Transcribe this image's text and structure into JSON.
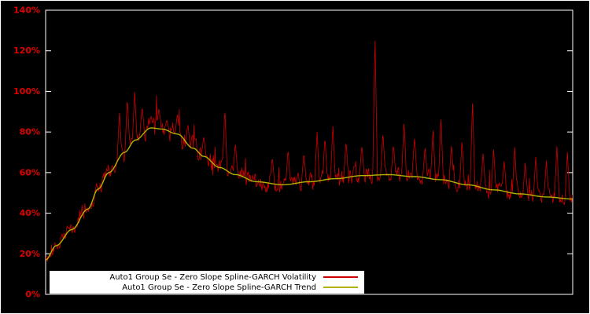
{
  "chart": {
    "background": "#000000",
    "frame_color": "#ffffff",
    "tick_label_color": "#dd0000",
    "legend_position": "bottom-left"
  },
  "chart_data": {
    "type": "line",
    "title": "",
    "xlabel": "",
    "ylabel": "",
    "ylim": [
      0,
      140
    ],
    "yticks": [
      0,
      20,
      40,
      60,
      80,
      100,
      120,
      140
    ],
    "ytick_labels": [
      "0%",
      "20%",
      "40%",
      "60%",
      "80%",
      "100%",
      "120%",
      "140%"
    ],
    "x_range": [
      0,
      1
    ],
    "grid": false,
    "series": [
      {
        "name": "Auto1 Group Se - Zero Slope Spline-GARCH Volatility",
        "color": "#cc0000",
        "style": "noisy"
      },
      {
        "name": "Auto1 Group Se - Zero Slope Spline-GARCH Trend",
        "color": "#b2b200",
        "style": "smooth"
      }
    ],
    "trend_points": {
      "x": [
        0,
        0.02,
        0.05,
        0.08,
        0.1,
        0.12,
        0.15,
        0.17,
        0.2,
        0.22,
        0.25,
        0.28,
        0.3,
        0.33,
        0.36,
        0.4,
        0.45,
        0.5,
        0.55,
        0.6,
        0.65,
        0.7,
        0.75,
        0.8,
        0.85,
        0.9,
        0.95,
        1.0
      ],
      "y": [
        17,
        24,
        32,
        42,
        52,
        60,
        70,
        76,
        82,
        81.5,
        79,
        72,
        68,
        62.5,
        59,
        55.5,
        54,
        55.5,
        57,
        58.5,
        59,
        58,
        56.5,
        54,
        51.5,
        49.5,
        48,
        47
      ]
    },
    "spikes": [
      {
        "x": 0.14,
        "peak": 90
      },
      {
        "x": 0.155,
        "peak": 97
      },
      {
        "x": 0.169,
        "peak": 100
      },
      {
        "x": 0.183,
        "peak": 93
      },
      {
        "x": 0.2,
        "peak": 88
      },
      {
        "x": 0.215,
        "peak": 92
      },
      {
        "x": 0.23,
        "peak": 86
      },
      {
        "x": 0.25,
        "peak": 89
      },
      {
        "x": 0.27,
        "peak": 84
      },
      {
        "x": 0.3,
        "peak": 78
      },
      {
        "x": 0.34,
        "peak": 92
      },
      {
        "x": 0.36,
        "peak": 75
      },
      {
        "x": 0.43,
        "peak": 68
      },
      {
        "x": 0.46,
        "peak": 72
      },
      {
        "x": 0.49,
        "peak": 70
      },
      {
        "x": 0.515,
        "peak": 80
      },
      {
        "x": 0.53,
        "peak": 78
      },
      {
        "x": 0.545,
        "peak": 83
      },
      {
        "x": 0.57,
        "peak": 76
      },
      {
        "x": 0.6,
        "peak": 74
      },
      {
        "x": 0.625,
        "peak": 127
      },
      {
        "x": 0.64,
        "peak": 80
      },
      {
        "x": 0.66,
        "peak": 74
      },
      {
        "x": 0.68,
        "peak": 86
      },
      {
        "x": 0.7,
        "peak": 78
      },
      {
        "x": 0.72,
        "peak": 73
      },
      {
        "x": 0.735,
        "peak": 82
      },
      {
        "x": 0.75,
        "peak": 88
      },
      {
        "x": 0.77,
        "peak": 74
      },
      {
        "x": 0.79,
        "peak": 76
      },
      {
        "x": 0.81,
        "peak": 96
      },
      {
        "x": 0.83,
        "peak": 70
      },
      {
        "x": 0.85,
        "peak": 72
      },
      {
        "x": 0.87,
        "peak": 66
      },
      {
        "x": 0.89,
        "peak": 73
      },
      {
        "x": 0.91,
        "peak": 65
      },
      {
        "x": 0.93,
        "peak": 68
      },
      {
        "x": 0.95,
        "peak": 66
      },
      {
        "x": 0.97,
        "peak": 73
      },
      {
        "x": 0.99,
        "peak": 70
      }
    ],
    "noise": {
      "seed": 42,
      "wiggle": 5.5,
      "spike_prob": 0.06,
      "spike_max": 14,
      "spike_halfwidth": 0.0045
    },
    "n_samples": 900
  }
}
